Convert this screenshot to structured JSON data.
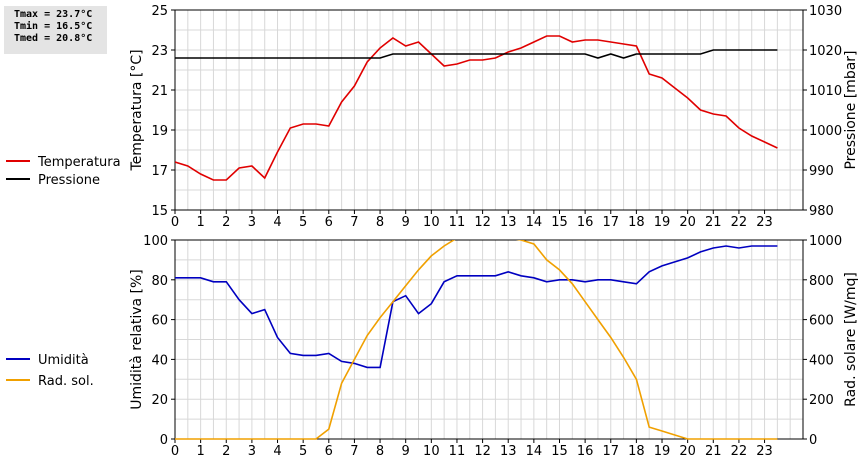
{
  "stats": {
    "tmax": "Tmax = 23.7°C",
    "tmin": "Tmin = 16.5°C",
    "tmed": "Tmed = 20.8°C"
  },
  "chart_data": [
    {
      "type": "line",
      "x_ticks": [
        "0",
        "1",
        "2",
        "3",
        "4",
        "5",
        "6",
        "7",
        "8",
        "9",
        "10",
        "11",
        "12",
        "13",
        "14",
        "15",
        "16",
        "17",
        "18",
        "19",
        "20",
        "21",
        "22",
        "23"
      ],
      "xlim": [
        0,
        24.5
      ],
      "ylabel": "Temperatura [°C]",
      "ylim": [
        15,
        25
      ],
      "y_ticks": [
        "15",
        "17",
        "19",
        "21",
        "23",
        "25"
      ],
      "y2label": "Pressione [mbar]",
      "y2lim": [
        980,
        1030
      ],
      "y2_ticks": [
        "980",
        "990",
        "1000",
        "1010",
        "1020",
        "1030"
      ],
      "grid": true,
      "legend_position": "left",
      "series": [
        {
          "name": "Temperatura",
          "axis": "left",
          "color": "#e00000",
          "points": [
            [
              0,
              17.4
            ],
            [
              0.5,
              17.2
            ],
            [
              1,
              16.8
            ],
            [
              1.5,
              16.5
            ],
            [
              2,
              16.5
            ],
            [
              2.5,
              17.1
            ],
            [
              3,
              17.2
            ],
            [
              3.5,
              16.6
            ],
            [
              4,
              17.9
            ],
            [
              4.5,
              19.1
            ],
            [
              5,
              19.3
            ],
            [
              5.5,
              19.3
            ],
            [
              6,
              19.2
            ],
            [
              6.5,
              20.4
            ],
            [
              7,
              21.2
            ],
            [
              7.5,
              22.4
            ],
            [
              8,
              23.1
            ],
            [
              8.5,
              23.6
            ],
            [
              9,
              23.2
            ],
            [
              9.5,
              23.4
            ],
            [
              10,
              22.8
            ],
            [
              10.5,
              22.2
            ],
            [
              11,
              22.3
            ],
            [
              11.5,
              22.5
            ],
            [
              12,
              22.5
            ],
            [
              12.5,
              22.6
            ],
            [
              13,
              22.9
            ],
            [
              13.5,
              23.1
            ],
            [
              14,
              23.4
            ],
            [
              14.5,
              23.7
            ],
            [
              15,
              23.7
            ],
            [
              15.5,
              23.4
            ],
            [
              16,
              23.5
            ],
            [
              16.5,
              23.5
            ],
            [
              17,
              23.4
            ],
            [
              17.5,
              23.3
            ],
            [
              18,
              23.2
            ],
            [
              18.5,
              21.8
            ],
            [
              19,
              21.6
            ],
            [
              19.5,
              21.1
            ],
            [
              20,
              20.6
            ],
            [
              20.5,
              20.0
            ],
            [
              21,
              19.8
            ],
            [
              21.5,
              19.7
            ],
            [
              22,
              19.1
            ],
            [
              22.5,
              18.7
            ],
            [
              23,
              18.4
            ],
            [
              23.5,
              18.1
            ]
          ]
        },
        {
          "name": "Pressione",
          "axis": "right",
          "color": "#000000",
          "points": [
            [
              0,
              1018
            ],
            [
              8,
              1018
            ],
            [
              8.5,
              1019
            ],
            [
              16,
              1019
            ],
            [
              16.5,
              1018
            ],
            [
              17,
              1019
            ],
            [
              17.5,
              1018
            ],
            [
              18,
              1019
            ],
            [
              20.5,
              1019
            ],
            [
              21,
              1020
            ],
            [
              23.5,
              1020
            ]
          ]
        }
      ]
    },
    {
      "type": "line",
      "x_ticks": [
        "0",
        "1",
        "2",
        "3",
        "4",
        "5",
        "6",
        "7",
        "8",
        "9",
        "10",
        "11",
        "12",
        "13",
        "14",
        "15",
        "16",
        "17",
        "18",
        "19",
        "20",
        "21",
        "22",
        "23"
      ],
      "xlim": [
        0,
        24.5
      ],
      "ylabel": "Umidità relativa [%]",
      "ylim": [
        0,
        100
      ],
      "y_ticks": [
        "0",
        "20",
        "40",
        "60",
        "80",
        "100"
      ],
      "y2label": "Rad. solare [W/mq]",
      "y2lim": [
        0,
        1000
      ],
      "y2_ticks": [
        "0",
        "200",
        "400",
        "600",
        "800",
        "1000"
      ],
      "grid": true,
      "legend_position": "left",
      "series": [
        {
          "name": "Umidità",
          "axis": "left",
          "color": "#0000c0",
          "points": [
            [
              0,
              81
            ],
            [
              0.5,
              81
            ],
            [
              1,
              81
            ],
            [
              1.5,
              79
            ],
            [
              2,
              79
            ],
            [
              2.5,
              70
            ],
            [
              3,
              63
            ],
            [
              3.5,
              65
            ],
            [
              4,
              51
            ],
            [
              4.5,
              43
            ],
            [
              5,
              42
            ],
            [
              5.5,
              42
            ],
            [
              6,
              43
            ],
            [
              6.5,
              39
            ],
            [
              7,
              38
            ],
            [
              7.5,
              36
            ],
            [
              8,
              36
            ],
            [
              8.5,
              69
            ],
            [
              9,
              72
            ],
            [
              9.5,
              63
            ],
            [
              10,
              68
            ],
            [
              10.5,
              79
            ],
            [
              11,
              82
            ],
            [
              11.5,
              82
            ],
            [
              12,
              82
            ],
            [
              12.5,
              82
            ],
            [
              13,
              84
            ],
            [
              13.5,
              82
            ],
            [
              14,
              81
            ],
            [
              14.5,
              79
            ],
            [
              15,
              80
            ],
            [
              15.5,
              80
            ],
            [
              16,
              79
            ],
            [
              16.5,
              80
            ],
            [
              17,
              80
            ],
            [
              17.5,
              79
            ],
            [
              18,
              78
            ],
            [
              18.5,
              84
            ],
            [
              19,
              87
            ],
            [
              19.5,
              89
            ],
            [
              20,
              91
            ],
            [
              20.5,
              94
            ],
            [
              21,
              96
            ],
            [
              21.5,
              97
            ],
            [
              22,
              96
            ],
            [
              22.5,
              97
            ],
            [
              23,
              97
            ],
            [
              23.5,
              97
            ]
          ]
        },
        {
          "name": "Rad. sol.",
          "axis": "right",
          "color": "#f0a000",
          "points": [
            [
              0,
              0
            ],
            [
              5.5,
              0
            ],
            [
              6,
              50
            ],
            [
              6.5,
              280
            ],
            [
              7,
              400
            ],
            [
              7.5,
              520
            ],
            [
              8,
              610
            ],
            [
              8.5,
              690
            ],
            [
              9,
              770
            ],
            [
              9.5,
              850
            ],
            [
              10,
              920
            ],
            [
              10.5,
              970
            ],
            [
              11,
              1010
            ],
            [
              11.5,
              1030
            ],
            [
              12,
              1040
            ],
            [
              12.5,
              1030
            ],
            [
              13,
              1010
            ],
            [
              13.5,
              1000
            ],
            [
              14,
              980
            ],
            [
              14.5,
              900
            ],
            [
              15,
              850
            ],
            [
              15.5,
              780
            ],
            [
              16,
              690
            ],
            [
              16.5,
              600
            ],
            [
              17,
              510
            ],
            [
              17.5,
              410
            ],
            [
              18,
              300
            ],
            [
              18.5,
              60
            ],
            [
              19,
              40
            ],
            [
              19.5,
              20
            ],
            [
              20,
              0
            ],
            [
              23.5,
              0
            ]
          ]
        }
      ]
    }
  ]
}
